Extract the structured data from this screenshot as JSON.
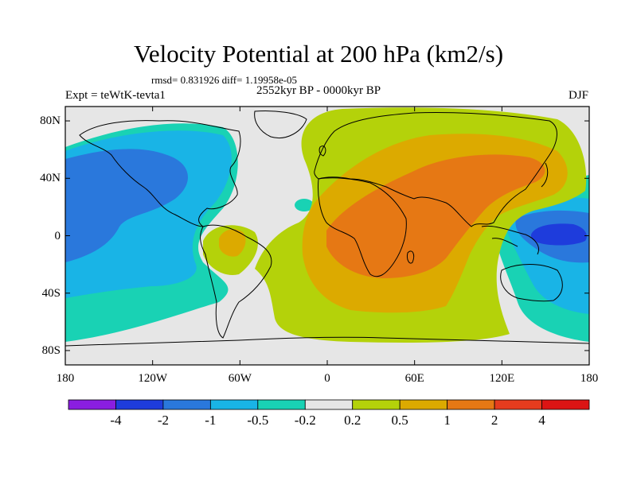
{
  "header": {
    "title": "Velocity Potential at 200 hPa (km2/s)",
    "stats": "rmsd= 0.831926  diff= 1.19958e-05",
    "experiment": "Expt = teWtK-tevta1",
    "period": "2552kyr BP - 0000kyr BP",
    "season": "DJF"
  },
  "map": {
    "projection": "cylindrical-equidistant",
    "lon_range": [
      -180,
      180
    ],
    "lat_range": [
      -90,
      90
    ],
    "lat_ticks": [
      {
        "value": 80,
        "label": "80N"
      },
      {
        "value": 40,
        "label": "40N"
      },
      {
        "value": 0,
        "label": "0"
      },
      {
        "value": -40,
        "label": "40S"
      },
      {
        "value": -80,
        "label": "80S"
      }
    ],
    "lon_ticks": [
      {
        "value": -180,
        "label": "180"
      },
      {
        "value": -120,
        "label": "120W"
      },
      {
        "value": -60,
        "label": "60W"
      },
      {
        "value": 0,
        "label": "0"
      },
      {
        "value": 60,
        "label": "60E"
      },
      {
        "value": 120,
        "label": "120E"
      },
      {
        "value": 180,
        "label": "180"
      }
    ],
    "background_color": "#e6e6e6",
    "coastline_color": "#000000"
  },
  "colorbar": {
    "levels": [
      "-4",
      "-2",
      "-1",
      "-0.5",
      "-0.2",
      "0.2",
      "0.5",
      "1",
      "2",
      "4"
    ],
    "colors": [
      "#8a1ee0",
      "#1e3cdc",
      "#2a78dc",
      "#19b4e6",
      "#19d2b4",
      "#e6e6e6",
      "#b4d20a",
      "#dcaa00",
      "#e67814",
      "#e63c1e",
      "#dc1414"
    ]
  },
  "chart_data": {
    "type": "heatmap",
    "variable": "Velocity Potential at 200 hPa",
    "units": "km2/s",
    "contour_levels": [
      -4,
      -2,
      -1,
      -0.5,
      -0.2,
      0.2,
      0.5,
      1,
      2,
      4
    ],
    "regions": [
      {
        "area": "North Pacific / western North America",
        "value_range": "-2 to -1",
        "category": "negative"
      },
      {
        "area": "Central Pacific",
        "value_range": "-1 to -0.5",
        "category": "negative"
      },
      {
        "area": "South Pacific",
        "value_range": "-0.5 to -0.2",
        "category": "negative"
      },
      {
        "area": "Western Pacific warm pool",
        "value_range": "-4 to -2",
        "category": "negative"
      },
      {
        "area": "Maritime Continent / Australia",
        "value_range": "-1 to -0.5",
        "category": "negative"
      },
      {
        "area": "Europe / North Africa / Asia",
        "value_range": "0.5 to 1",
        "category": "positive"
      },
      {
        "area": "Africa / Middle East / South Asia",
        "value_range": "1 to 2",
        "category": "positive"
      },
      {
        "area": "South Atlantic / Southern Ocean",
        "value_range": "0.2 to 0.5",
        "category": "positive"
      },
      {
        "area": "Northern South America",
        "value_range": "0.5 to 1",
        "category": "positive"
      }
    ]
  }
}
